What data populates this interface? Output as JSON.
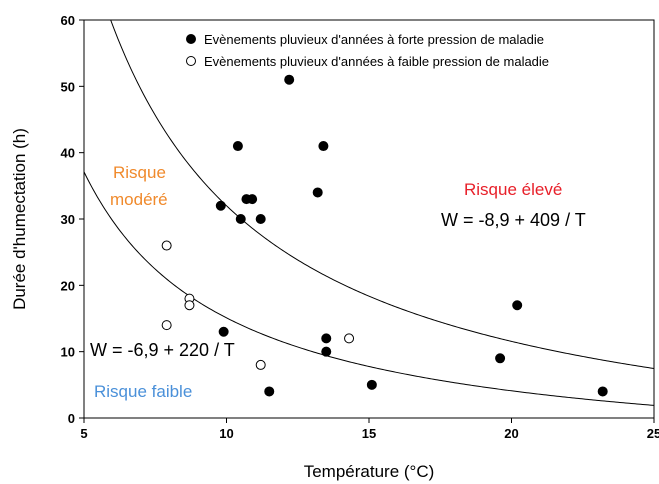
{
  "chart_data": {
    "type": "scatter",
    "title": "",
    "xlabel": "Température (°C)",
    "ylabel": "Durée d'humectation (h)",
    "xlim": [
      5,
      25
    ],
    "ylim": [
      0,
      60
    ],
    "x_ticks": [
      5,
      10,
      15,
      20,
      25
    ],
    "y_ticks": [
      0,
      10,
      20,
      30,
      40,
      50,
      60
    ],
    "grid": false,
    "legend_position": "top-right",
    "series": [
      {
        "name": "Evènements pluvieux d'années à forte pression de maladie",
        "marker": "filled-circle",
        "color": "#000000",
        "points": [
          {
            "x": 12.2,
            "y": 51
          },
          {
            "x": 10.4,
            "y": 41
          },
          {
            "x": 13.4,
            "y": 41
          },
          {
            "x": 13.2,
            "y": 34
          },
          {
            "x": 10.7,
            "y": 33
          },
          {
            "x": 10.9,
            "y": 33
          },
          {
            "x": 9.8,
            "y": 32
          },
          {
            "x": 10.5,
            "y": 30
          },
          {
            "x": 11.2,
            "y": 30
          },
          {
            "x": 20.2,
            "y": 17
          },
          {
            "x": 9.9,
            "y": 13
          },
          {
            "x": 13.5,
            "y": 12
          },
          {
            "x": 13.5,
            "y": 10
          },
          {
            "x": 19.6,
            "y": 9
          },
          {
            "x": 15.1,
            "y": 5
          },
          {
            "x": 11.5,
            "y": 4
          },
          {
            "x": 23.2,
            "y": 4
          }
        ]
      },
      {
        "name": "Evènements pluvieux d'années à faible pression de maladie",
        "marker": "open-circle",
        "color": "#000000",
        "points": [
          {
            "x": 7.9,
            "y": 26
          },
          {
            "x": 8.7,
            "y": 18
          },
          {
            "x": 8.7,
            "y": 17
          },
          {
            "x": 7.9,
            "y": 14
          },
          {
            "x": 14.3,
            "y": 12
          },
          {
            "x": 11.2,
            "y": 8
          }
        ]
      }
    ],
    "curves": [
      {
        "a": -8.9,
        "b": 409,
        "label": "W = -8,9 + 409 / T"
      },
      {
        "a": -6.9,
        "b": 220,
        "label": "W = -6,9 + 220 / T"
      }
    ],
    "zones": [
      {
        "label": "Risque élevé",
        "color": "#e8202a"
      },
      {
        "label_lines": [
          "Risque",
          "modéré"
        ],
        "color": "#f08a2c"
      },
      {
        "label": "Risque faible",
        "color": "#4a90d9"
      }
    ]
  }
}
